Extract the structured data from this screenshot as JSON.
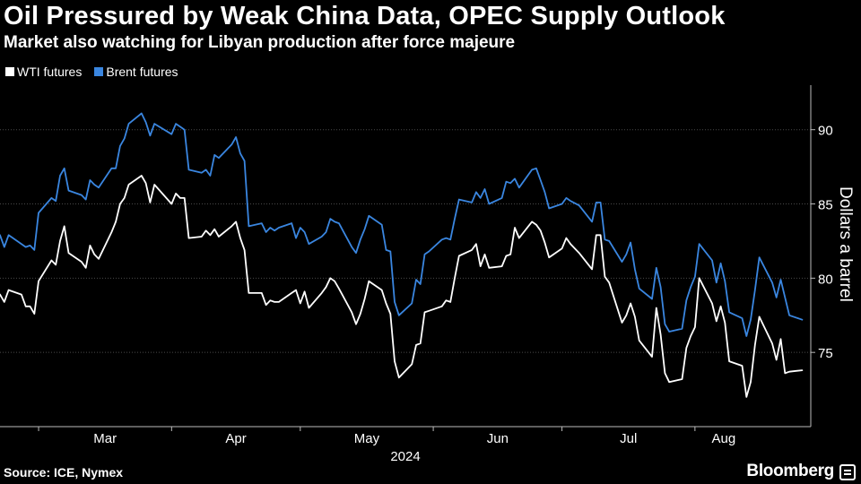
{
  "header": {
    "title": "Oil Pressured by Weak China Data, OPEC Supply Outlook",
    "subtitle": "Market also watching for Libyan production after force majeure"
  },
  "footer": {
    "source": "Source: ICE, Nymex",
    "brand": "Bloomberg"
  },
  "colors": {
    "background": "#000000",
    "wti": "#ffffff",
    "brent": "#3a86e0",
    "grid": "#555555"
  },
  "chart_data": {
    "type": "line",
    "title": "Oil Pressured by Weak China Data, OPEC Supply Outlook",
    "subtitle": "Market also watching for Libyan production after force majeure",
    "ylabel": "Dollars a barrel",
    "xlabel": "2024",
    "ylim": [
      70,
      93
    ],
    "y_ticks": [
      75,
      80,
      85,
      90
    ],
    "x_ticks": [
      "Mar",
      "Apr",
      "May",
      "Jun",
      "Jul",
      "Aug"
    ],
    "x_tick_dates": [
      "2024-03-01",
      "2024-04-01",
      "2024-05-01",
      "2024-06-01",
      "2024-07-01",
      "2024-08-01"
    ],
    "x_range": [
      "2024-02-21",
      "2024-08-28"
    ],
    "grid": "horizontal dotted",
    "legend_position": "top-left",
    "source": "Source: ICE, Nymex",
    "series": [
      {
        "name": "WTI futures",
        "color": "#ffffff",
        "points": [
          [
            "2024-02-21",
            78.9
          ],
          [
            "2024-02-22",
            78.4
          ],
          [
            "2024-02-23",
            79.2
          ],
          [
            "2024-02-26",
            78.9
          ],
          [
            "2024-02-27",
            78.1
          ],
          [
            "2024-02-28",
            78.1
          ],
          [
            "2024-02-29",
            77.6
          ],
          [
            "2024-03-01",
            79.8
          ],
          [
            "2024-03-04",
            81.2
          ],
          [
            "2024-03-05",
            80.9
          ],
          [
            "2024-03-06",
            82.5
          ],
          [
            "2024-03-07",
            83.5
          ],
          [
            "2024-03-08",
            81.7
          ],
          [
            "2024-03-11",
            81.1
          ],
          [
            "2024-03-12",
            80.7
          ],
          [
            "2024-03-13",
            82.2
          ],
          [
            "2024-03-14",
            81.6
          ],
          [
            "2024-03-15",
            81.3
          ],
          [
            "2024-03-18",
            83.1
          ],
          [
            "2024-03-19",
            83.8
          ],
          [
            "2024-03-20",
            85.0
          ],
          [
            "2024-03-21",
            85.4
          ],
          [
            "2024-03-22",
            86.3
          ],
          [
            "2024-03-25",
            86.9
          ],
          [
            "2024-03-26",
            86.4
          ],
          [
            "2024-03-27",
            85.1
          ],
          [
            "2024-03-28",
            86.3
          ],
          [
            "2024-04-01",
            85.0
          ],
          [
            "2024-04-02",
            85.7
          ],
          [
            "2024-04-03",
            85.4
          ],
          [
            "2024-04-04",
            85.4
          ],
          [
            "2024-04-05",
            82.7
          ],
          [
            "2024-04-08",
            82.8
          ],
          [
            "2024-04-09",
            83.2
          ],
          [
            "2024-04-10",
            82.9
          ],
          [
            "2024-04-11",
            83.3
          ],
          [
            "2024-04-12",
            82.8
          ],
          [
            "2024-04-15",
            83.5
          ],
          [
            "2024-04-16",
            83.8
          ],
          [
            "2024-04-17",
            82.7
          ],
          [
            "2024-04-18",
            81.9
          ],
          [
            "2024-04-19",
            79.0
          ],
          [
            "2024-04-22",
            79.0
          ],
          [
            "2024-04-23",
            78.2
          ],
          [
            "2024-04-24",
            78.5
          ],
          [
            "2024-04-25",
            78.4
          ],
          [
            "2024-04-26",
            78.4
          ],
          [
            "2024-04-29",
            79.0
          ],
          [
            "2024-04-30",
            79.2
          ],
          [
            "2024-05-01",
            78.3
          ],
          [
            "2024-05-02",
            79.1
          ],
          [
            "2024-05-03",
            78.0
          ],
          [
            "2024-05-06",
            79.0
          ],
          [
            "2024-05-07",
            79.4
          ],
          [
            "2024-05-08",
            80.0
          ],
          [
            "2024-05-09",
            79.8
          ],
          [
            "2024-05-10",
            79.3
          ],
          [
            "2024-05-13",
            77.7
          ],
          [
            "2024-05-14",
            76.9
          ],
          [
            "2024-05-15",
            77.6
          ],
          [
            "2024-05-16",
            78.6
          ],
          [
            "2024-05-17",
            79.8
          ],
          [
            "2024-05-20",
            79.2
          ],
          [
            "2024-05-21",
            78.3
          ],
          [
            "2024-05-22",
            77.6
          ],
          [
            "2024-05-23",
            74.4
          ],
          [
            "2024-05-24",
            73.3
          ],
          [
            "2024-05-27",
            74.2
          ],
          [
            "2024-05-28",
            75.5
          ],
          [
            "2024-05-29",
            75.6
          ],
          [
            "2024-05-30",
            77.7
          ],
          [
            "2024-05-31",
            77.8
          ],
          [
            "2024-06-03",
            78.1
          ],
          [
            "2024-06-04",
            78.5
          ],
          [
            "2024-06-05",
            78.4
          ],
          [
            "2024-06-06",
            80.0
          ],
          [
            "2024-06-07",
            81.5
          ],
          [
            "2024-06-10",
            81.9
          ],
          [
            "2024-06-11",
            82.3
          ],
          [
            "2024-06-12",
            80.8
          ],
          [
            "2024-06-13",
            81.6
          ],
          [
            "2024-06-14",
            80.7
          ],
          [
            "2024-06-17",
            80.8
          ],
          [
            "2024-06-18",
            81.5
          ],
          [
            "2024-06-19",
            81.6
          ],
          [
            "2024-06-20",
            83.4
          ],
          [
            "2024-06-21",
            82.7
          ],
          [
            "2024-06-24",
            83.8
          ],
          [
            "2024-06-25",
            83.6
          ],
          [
            "2024-06-26",
            83.2
          ],
          [
            "2024-06-27",
            82.4
          ],
          [
            "2024-06-28",
            81.4
          ],
          [
            "2024-07-01",
            82.0
          ],
          [
            "2024-07-02",
            82.7
          ],
          [
            "2024-07-03",
            82.3
          ],
          [
            "2024-07-05",
            81.7
          ],
          [
            "2024-07-08",
            80.6
          ],
          [
            "2024-07-09",
            82.9
          ],
          [
            "2024-07-10",
            82.9
          ],
          [
            "2024-07-11",
            80.1
          ],
          [
            "2024-07-12",
            79.7
          ],
          [
            "2024-07-15",
            77.0
          ],
          [
            "2024-07-16",
            77.5
          ],
          [
            "2024-07-17",
            78.3
          ],
          [
            "2024-07-18",
            77.4
          ],
          [
            "2024-07-19",
            75.8
          ],
          [
            "2024-07-22",
            74.7
          ],
          [
            "2024-07-23",
            78.0
          ],
          [
            "2024-07-24",
            76.2
          ],
          [
            "2024-07-25",
            73.6
          ],
          [
            "2024-07-26",
            73.0
          ],
          [
            "2024-07-29",
            73.2
          ],
          [
            "2024-07-30",
            75.3
          ],
          [
            "2024-07-31",
            76.1
          ],
          [
            "2024-08-01",
            76.7
          ],
          [
            "2024-08-02",
            80.0
          ],
          [
            "2024-08-05",
            78.3
          ],
          [
            "2024-08-06",
            77.1
          ],
          [
            "2024-08-07",
            78.1
          ],
          [
            "2024-08-08",
            77.0
          ],
          [
            "2024-08-09",
            74.4
          ],
          [
            "2024-08-12",
            74.1
          ],
          [
            "2024-08-13",
            72.0
          ],
          [
            "2024-08-14",
            73.0
          ],
          [
            "2024-08-15",
            75.5
          ],
          [
            "2024-08-16",
            77.4
          ],
          [
            "2024-08-19",
            75.6
          ],
          [
            "2024-08-20",
            74.5
          ],
          [
            "2024-08-21",
            75.9
          ],
          [
            "2024-08-22",
            73.6
          ],
          [
            "2024-08-23",
            73.7
          ],
          [
            "2024-08-26",
            73.8
          ]
        ]
      },
      {
        "name": "Brent futures",
        "color": "#3a86e0",
        "points": [
          [
            "2024-02-21",
            82.9
          ],
          [
            "2024-02-22",
            82.1
          ],
          [
            "2024-02-23",
            82.9
          ],
          [
            "2024-02-26",
            82.3
          ],
          [
            "2024-02-27",
            82.1
          ],
          [
            "2024-02-28",
            82.2
          ],
          [
            "2024-02-29",
            81.9
          ],
          [
            "2024-03-01",
            84.4
          ],
          [
            "2024-03-04",
            85.4
          ],
          [
            "2024-03-05",
            85.2
          ],
          [
            "2024-03-06",
            86.9
          ],
          [
            "2024-03-07",
            87.4
          ],
          [
            "2024-03-08",
            85.9
          ],
          [
            "2024-03-11",
            85.6
          ],
          [
            "2024-03-12",
            85.3
          ],
          [
            "2024-03-13",
            86.6
          ],
          [
            "2024-03-14",
            86.3
          ],
          [
            "2024-03-15",
            86.1
          ],
          [
            "2024-03-18",
            87.4
          ],
          [
            "2024-03-19",
            87.4
          ],
          [
            "2024-03-20",
            88.9
          ],
          [
            "2024-03-21",
            89.4
          ],
          [
            "2024-03-22",
            90.4
          ],
          [
            "2024-03-25",
            91.1
          ],
          [
            "2024-03-26",
            90.5
          ],
          [
            "2024-03-27",
            89.6
          ],
          [
            "2024-03-28",
            90.4
          ],
          [
            "2024-04-01",
            89.7
          ],
          [
            "2024-04-02",
            90.4
          ],
          [
            "2024-04-03",
            90.2
          ],
          [
            "2024-04-04",
            90.0
          ],
          [
            "2024-04-05",
            87.3
          ],
          [
            "2024-04-08",
            87.1
          ],
          [
            "2024-04-09",
            87.3
          ],
          [
            "2024-04-10",
            86.9
          ],
          [
            "2024-04-11",
            88.3
          ],
          [
            "2024-04-12",
            88.1
          ],
          [
            "2024-04-15",
            89.0
          ],
          [
            "2024-04-16",
            89.5
          ],
          [
            "2024-04-17",
            88.4
          ],
          [
            "2024-04-18",
            87.9
          ],
          [
            "2024-04-19",
            83.5
          ],
          [
            "2024-04-22",
            83.7
          ],
          [
            "2024-04-23",
            83.1
          ],
          [
            "2024-04-24",
            83.4
          ],
          [
            "2024-04-25",
            83.2
          ],
          [
            "2024-04-26",
            83.4
          ],
          [
            "2024-04-29",
            83.7
          ],
          [
            "2024-04-30",
            82.7
          ],
          [
            "2024-05-01",
            83.4
          ],
          [
            "2024-05-02",
            83.1
          ],
          [
            "2024-05-03",
            82.3
          ],
          [
            "2024-05-06",
            82.8
          ],
          [
            "2024-05-07",
            83.1
          ],
          [
            "2024-05-08",
            84.0
          ],
          [
            "2024-05-09",
            83.8
          ],
          [
            "2024-05-10",
            83.7
          ],
          [
            "2024-05-13",
            82.1
          ],
          [
            "2024-05-14",
            81.7
          ],
          [
            "2024-05-15",
            82.6
          ],
          [
            "2024-05-16",
            83.3
          ],
          [
            "2024-05-17",
            84.2
          ],
          [
            "2024-05-20",
            83.6
          ],
          [
            "2024-05-21",
            81.9
          ],
          [
            "2024-05-22",
            81.8
          ],
          [
            "2024-05-23",
            78.4
          ],
          [
            "2024-05-24",
            77.5
          ],
          [
            "2024-05-27",
            78.3
          ],
          [
            "2024-05-28",
            79.9
          ],
          [
            "2024-05-29",
            79.6
          ],
          [
            "2024-05-30",
            81.6
          ],
          [
            "2024-05-31",
            81.8
          ],
          [
            "2024-06-03",
            82.6
          ],
          [
            "2024-06-04",
            82.7
          ],
          [
            "2024-06-05",
            82.6
          ],
          [
            "2024-06-06",
            84.0
          ],
          [
            "2024-06-07",
            85.3
          ],
          [
            "2024-06-10",
            85.1
          ],
          [
            "2024-06-11",
            85.8
          ],
          [
            "2024-06-12",
            85.4
          ],
          [
            "2024-06-13",
            86.0
          ],
          [
            "2024-06-14",
            85.0
          ],
          [
            "2024-06-17",
            85.4
          ],
          [
            "2024-06-18",
            86.5
          ],
          [
            "2024-06-19",
            86.4
          ],
          [
            "2024-06-20",
            86.7
          ],
          [
            "2024-06-21",
            86.1
          ],
          [
            "2024-06-24",
            87.3
          ],
          [
            "2024-06-25",
            87.4
          ],
          [
            "2024-06-26",
            86.6
          ],
          [
            "2024-06-27",
            85.8
          ],
          [
            "2024-06-28",
            84.7
          ],
          [
            "2024-07-01",
            85.0
          ],
          [
            "2024-07-02",
            85.4
          ],
          [
            "2024-07-03",
            85.2
          ],
          [
            "2024-07-05",
            84.9
          ],
          [
            "2024-07-08",
            83.8
          ],
          [
            "2024-07-09",
            85.1
          ],
          [
            "2024-07-10",
            85.1
          ],
          [
            "2024-07-11",
            82.6
          ],
          [
            "2024-07-12",
            82.5
          ],
          [
            "2024-07-15",
            81.1
          ],
          [
            "2024-07-16",
            81.6
          ],
          [
            "2024-07-17",
            82.4
          ],
          [
            "2024-07-18",
            80.6
          ],
          [
            "2024-07-19",
            79.3
          ],
          [
            "2024-07-22",
            78.6
          ],
          [
            "2024-07-23",
            80.7
          ],
          [
            "2024-07-24",
            79.4
          ],
          [
            "2024-07-25",
            76.9
          ],
          [
            "2024-07-26",
            76.4
          ],
          [
            "2024-07-29",
            76.6
          ],
          [
            "2024-07-30",
            78.5
          ],
          [
            "2024-07-31",
            79.4
          ],
          [
            "2024-08-01",
            80.1
          ],
          [
            "2024-08-02",
            82.3
          ],
          [
            "2024-08-05",
            81.2
          ],
          [
            "2024-08-06",
            79.7
          ],
          [
            "2024-08-07",
            81.0
          ],
          [
            "2024-08-08",
            79.8
          ],
          [
            "2024-08-09",
            77.7
          ],
          [
            "2024-08-12",
            77.3
          ],
          [
            "2024-08-13",
            76.1
          ],
          [
            "2024-08-14",
            77.2
          ],
          [
            "2024-08-15",
            79.2
          ],
          [
            "2024-08-16",
            81.4
          ],
          [
            "2024-08-19",
            79.7
          ],
          [
            "2024-08-20",
            78.7
          ],
          [
            "2024-08-21",
            79.9
          ],
          [
            "2024-08-22",
            78.7
          ],
          [
            "2024-08-23",
            77.5
          ],
          [
            "2024-08-26",
            77.2
          ]
        ]
      }
    ]
  }
}
